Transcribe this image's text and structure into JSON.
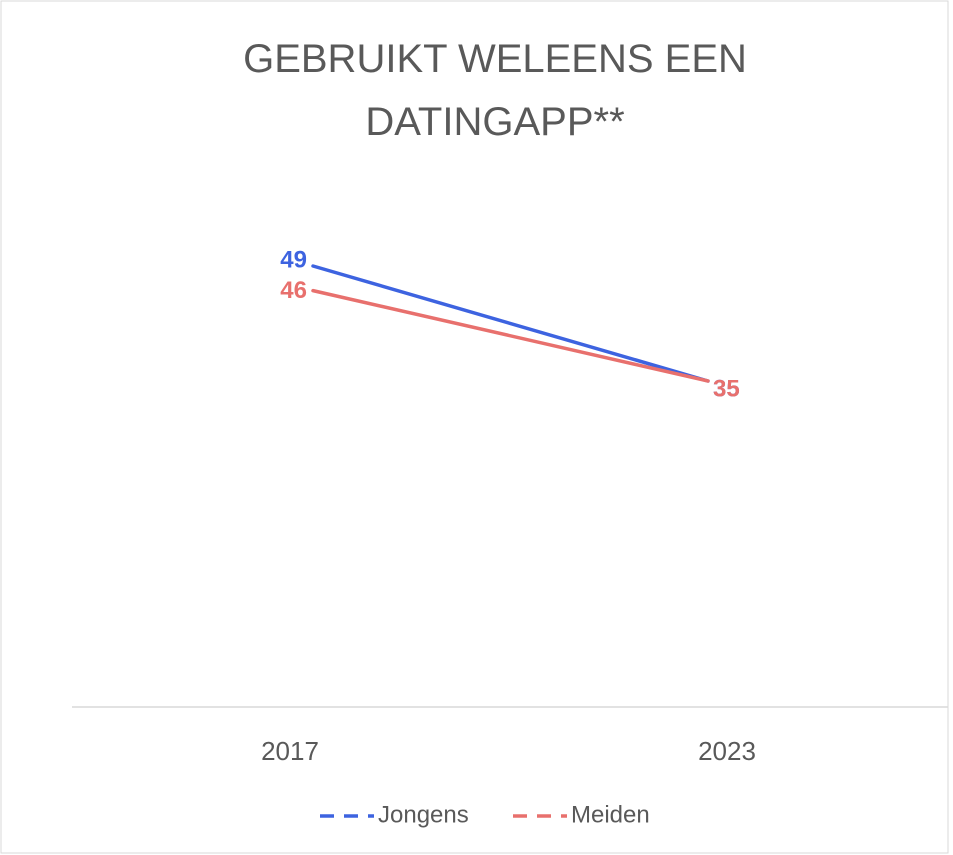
{
  "chart_data": {
    "type": "line",
    "title": "GEBRUIKT WELEENS EEN DATINGAPP**",
    "categories": [
      "2017",
      "2023"
    ],
    "series": [
      {
        "name": "Jongens",
        "color": "#3d63e0",
        "values": [
          49,
          35
        ]
      },
      {
        "name": "Meiden",
        "color": "#e8706d",
        "values": [
          46,
          35
        ]
      }
    ],
    "legend": "bottom",
    "line_style": "dashed-legend"
  }
}
